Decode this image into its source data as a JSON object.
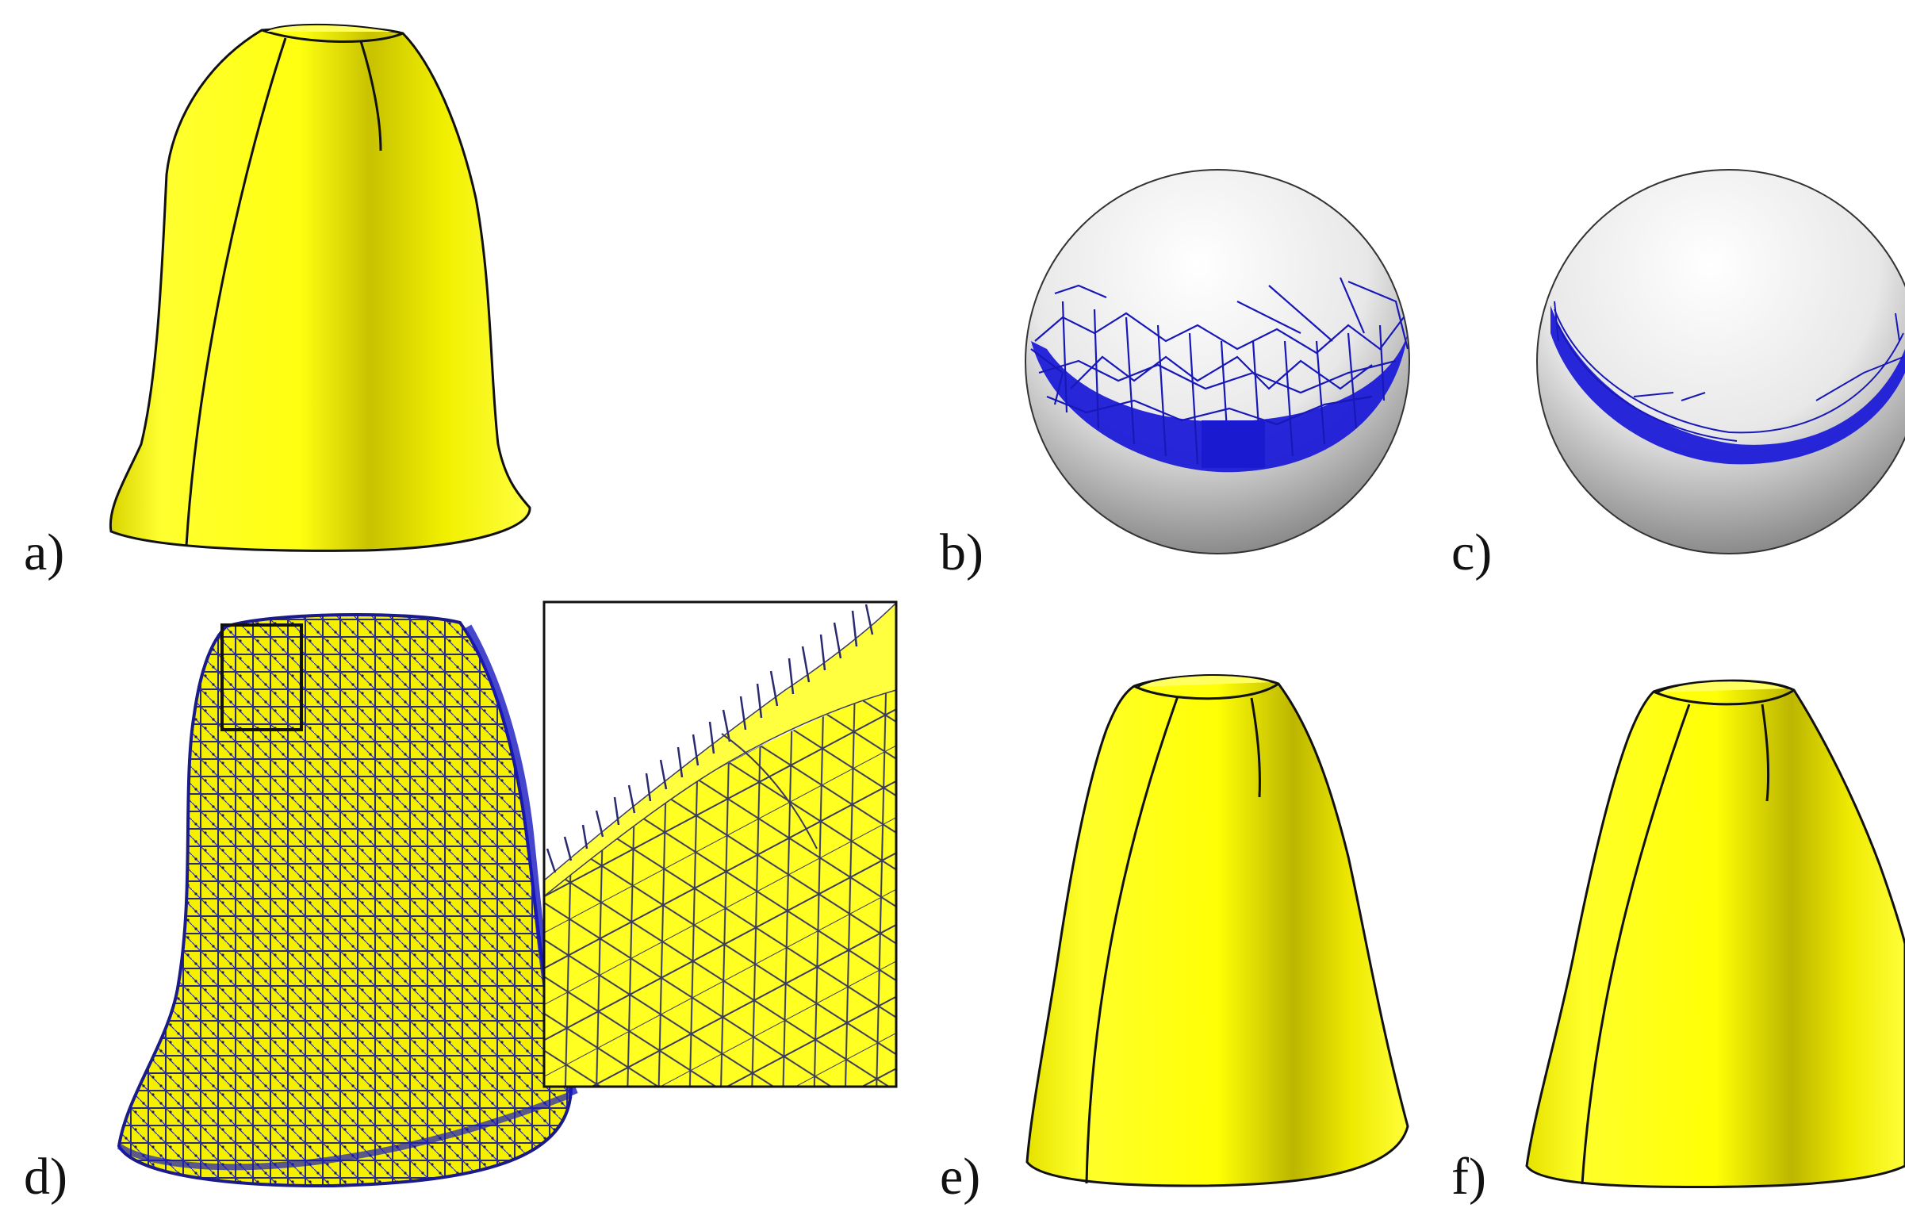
{
  "figure": {
    "panels": [
      {
        "id": "a",
        "label": "a)",
        "content": "smooth-surface"
      },
      {
        "id": "b",
        "label": "b)",
        "content": "gauss-map-sphere-dense"
      },
      {
        "id": "c",
        "label": "c)",
        "content": "gauss-map-sphere-narrow"
      },
      {
        "id": "d",
        "label": "d)",
        "content": "noisy-mesh-with-zoom"
      },
      {
        "id": "e",
        "label": "e)",
        "content": "smooth-surface"
      },
      {
        "id": "f",
        "label": "f)",
        "content": "smooth-surface"
      }
    ]
  },
  "colors": {
    "surface_yellow": "#ffff1a",
    "surface_shadow": "#b9b300",
    "normals_blue": "#1f1fd0",
    "sphere_light": "#ffffff",
    "sphere_dark": "#7a7a7a",
    "outline": "#111111"
  }
}
